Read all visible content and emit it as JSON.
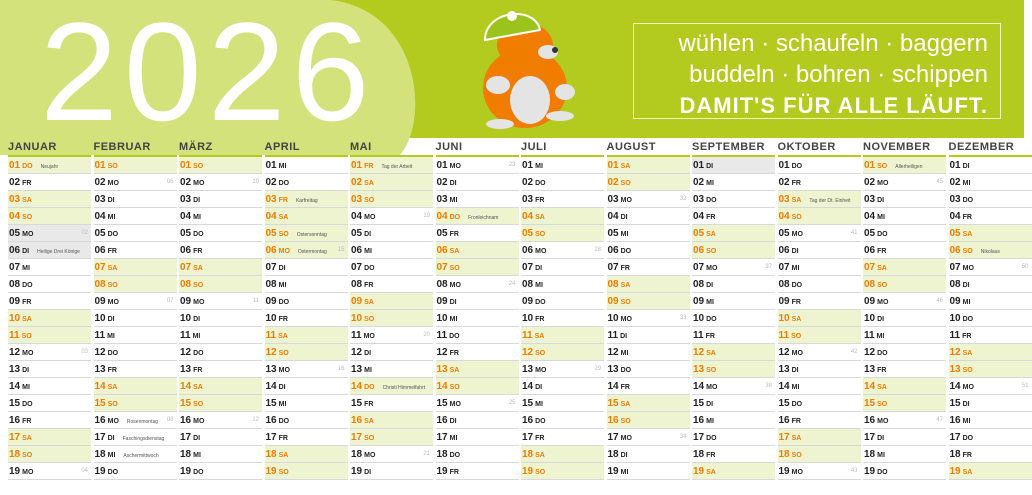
{
  "header": {
    "year": "2026",
    "slogan": [
      "wühlen · schaufeln · baggern",
      "buddeln · bohren · schippen",
      "DAMIT'S FÜR ALLE LÄUFT."
    ]
  },
  "calendar": {
    "months": [
      {
        "name": "JANUAR",
        "days": [
          [
            "01",
            "DO",
            1,
            null,
            "Neujahr"
          ],
          [
            "02",
            "FR",
            0
          ],
          [
            "03",
            "SA",
            1
          ],
          [
            "04",
            "SO",
            1
          ],
          [
            "05",
            "MO",
            2,
            "02"
          ],
          [
            "06",
            "DI",
            2,
            null,
            "Heilige Drei Könige"
          ],
          [
            "07",
            "MI",
            0
          ],
          [
            "08",
            "DO",
            0
          ],
          [
            "09",
            "FR",
            0
          ],
          [
            "10",
            "SA",
            1
          ],
          [
            "11",
            "SO",
            1
          ],
          [
            "12",
            "MO",
            0,
            "03"
          ],
          [
            "13",
            "DI",
            0
          ],
          [
            "14",
            "MI",
            0
          ],
          [
            "15",
            "DO",
            0
          ],
          [
            "16",
            "FR",
            0
          ],
          [
            "17",
            "SA",
            1
          ],
          [
            "18",
            "SO",
            1
          ],
          [
            "19",
            "MO",
            0,
            "04"
          ]
        ]
      },
      {
        "name": "FEBRUAR",
        "days": [
          [
            "01",
            "SO",
            1
          ],
          [
            "02",
            "MO",
            0,
            "06"
          ],
          [
            "03",
            "DI",
            0
          ],
          [
            "04",
            "MI",
            0
          ],
          [
            "05",
            "DO",
            0
          ],
          [
            "06",
            "FR",
            0
          ],
          [
            "07",
            "SA",
            1
          ],
          [
            "08",
            "SO",
            1
          ],
          [
            "09",
            "MO",
            0,
            "07"
          ],
          [
            "10",
            "DI",
            0
          ],
          [
            "11",
            "MI",
            0
          ],
          [
            "12",
            "DO",
            0
          ],
          [
            "13",
            "FR",
            0
          ],
          [
            "14",
            "SA",
            1
          ],
          [
            "15",
            "SO",
            1
          ],
          [
            "16",
            "MO",
            0,
            "08",
            "Rosenmontag"
          ],
          [
            "17",
            "DI",
            0,
            null,
            "Faschingsdienstag"
          ],
          [
            "18",
            "MI",
            0,
            null,
            "Aschermittwoch"
          ],
          [
            "19",
            "DO",
            0
          ]
        ]
      },
      {
        "name": "MÄRZ",
        "days": [
          [
            "01",
            "SO",
            1
          ],
          [
            "02",
            "MO",
            0,
            "10"
          ],
          [
            "03",
            "DI",
            0
          ],
          [
            "04",
            "MI",
            0
          ],
          [
            "05",
            "DO",
            0
          ],
          [
            "06",
            "FR",
            0
          ],
          [
            "07",
            "SA",
            1
          ],
          [
            "08",
            "SO",
            1
          ],
          [
            "09",
            "MO",
            0,
            "11"
          ],
          [
            "10",
            "DI",
            0
          ],
          [
            "11",
            "MI",
            0
          ],
          [
            "12",
            "DO",
            0
          ],
          [
            "13",
            "FR",
            0
          ],
          [
            "14",
            "SA",
            1
          ],
          [
            "15",
            "SO",
            1
          ],
          [
            "16",
            "MO",
            0,
            "12"
          ],
          [
            "17",
            "DI",
            0
          ],
          [
            "18",
            "MI",
            0
          ],
          [
            "19",
            "DO",
            0
          ]
        ]
      },
      {
        "name": "APRIL",
        "days": [
          [
            "01",
            "MI",
            0
          ],
          [
            "02",
            "DO",
            0
          ],
          [
            "03",
            "FR",
            1,
            null,
            "Karfreitag"
          ],
          [
            "04",
            "SA",
            1
          ],
          [
            "05",
            "SO",
            1,
            null,
            "Ostersonntag"
          ],
          [
            "06",
            "MO",
            1,
            "15",
            "Ostermontag"
          ],
          [
            "07",
            "DI",
            0
          ],
          [
            "08",
            "MI",
            0
          ],
          [
            "09",
            "DO",
            0
          ],
          [
            "10",
            "FR",
            0
          ],
          [
            "11",
            "SA",
            1
          ],
          [
            "12",
            "SO",
            1
          ],
          [
            "13",
            "MO",
            0,
            "16"
          ],
          [
            "14",
            "DI",
            0
          ],
          [
            "15",
            "MI",
            0
          ],
          [
            "16",
            "DO",
            0
          ],
          [
            "17",
            "FR",
            0
          ],
          [
            "18",
            "SA",
            1
          ],
          [
            "19",
            "SO",
            1
          ]
        ]
      },
      {
        "name": "MAI",
        "days": [
          [
            "01",
            "FR",
            1,
            null,
            "Tag der Arbeit"
          ],
          [
            "02",
            "SA",
            1
          ],
          [
            "03",
            "SO",
            1
          ],
          [
            "04",
            "MO",
            0,
            "19"
          ],
          [
            "05",
            "DI",
            0
          ],
          [
            "06",
            "MI",
            0
          ],
          [
            "07",
            "DO",
            0
          ],
          [
            "08",
            "FR",
            0
          ],
          [
            "09",
            "SA",
            1
          ],
          [
            "10",
            "SO",
            1
          ],
          [
            "11",
            "MO",
            0,
            "20"
          ],
          [
            "12",
            "DI",
            0
          ],
          [
            "13",
            "MI",
            0
          ],
          [
            "14",
            "DO",
            1,
            null,
            "Christi Himmelfahrt"
          ],
          [
            "15",
            "FR",
            0
          ],
          [
            "16",
            "SA",
            1
          ],
          [
            "17",
            "SO",
            1
          ],
          [
            "18",
            "MO",
            0,
            "21"
          ],
          [
            "19",
            "DI",
            0
          ]
        ]
      },
      {
        "name": "JUNI",
        "days": [
          [
            "01",
            "MO",
            0,
            "23"
          ],
          [
            "02",
            "DI",
            0
          ],
          [
            "03",
            "MI",
            0
          ],
          [
            "04",
            "DO",
            1,
            null,
            "Fronleichnam"
          ],
          [
            "05",
            "FR",
            0
          ],
          [
            "06",
            "SA",
            1
          ],
          [
            "07",
            "SO",
            1
          ],
          [
            "08",
            "MO",
            0,
            "24"
          ],
          [
            "09",
            "DI",
            0
          ],
          [
            "10",
            "MI",
            0
          ],
          [
            "11",
            "DO",
            0
          ],
          [
            "12",
            "FR",
            0
          ],
          [
            "13",
            "SA",
            1
          ],
          [
            "14",
            "SO",
            1
          ],
          [
            "15",
            "MO",
            0,
            "25"
          ],
          [
            "16",
            "DI",
            0
          ],
          [
            "17",
            "MI",
            0
          ],
          [
            "18",
            "DO",
            0
          ],
          [
            "19",
            "FR",
            0
          ]
        ]
      },
      {
        "name": "JULI",
        "days": [
          [
            "01",
            "MI",
            0
          ],
          [
            "02",
            "DO",
            0
          ],
          [
            "03",
            "FR",
            0
          ],
          [
            "04",
            "SA",
            1
          ],
          [
            "05",
            "SO",
            1
          ],
          [
            "06",
            "MO",
            0,
            "28"
          ],
          [
            "07",
            "DI",
            0
          ],
          [
            "08",
            "MI",
            0
          ],
          [
            "09",
            "DO",
            0
          ],
          [
            "10",
            "FR",
            0
          ],
          [
            "11",
            "SA",
            1
          ],
          [
            "12",
            "SO",
            1
          ],
          [
            "13",
            "MO",
            0,
            "29"
          ],
          [
            "14",
            "DI",
            0
          ],
          [
            "15",
            "MI",
            0
          ],
          [
            "16",
            "DO",
            0
          ],
          [
            "17",
            "FR",
            0
          ],
          [
            "18",
            "SA",
            1
          ],
          [
            "19",
            "SO",
            1
          ]
        ]
      },
      {
        "name": "AUGUST",
        "days": [
          [
            "01",
            "SA",
            1
          ],
          [
            "02",
            "SO",
            1
          ],
          [
            "03",
            "MO",
            0,
            "32"
          ],
          [
            "04",
            "DI",
            0
          ],
          [
            "05",
            "MI",
            0
          ],
          [
            "06",
            "DO",
            0
          ],
          [
            "07",
            "FR",
            0
          ],
          [
            "08",
            "SA",
            1
          ],
          [
            "09",
            "SO",
            1
          ],
          [
            "10",
            "MO",
            0,
            "33"
          ],
          [
            "11",
            "DI",
            0
          ],
          [
            "12",
            "MI",
            0
          ],
          [
            "13",
            "DO",
            0
          ],
          [
            "14",
            "FR",
            0
          ],
          [
            "15",
            "SA",
            1
          ],
          [
            "16",
            "SO",
            1
          ],
          [
            "17",
            "MO",
            0,
            "34"
          ],
          [
            "18",
            "DI",
            0
          ],
          [
            "19",
            "MI",
            0
          ]
        ]
      },
      {
        "name": "SEPTEMBER",
        "days": [
          [
            "01",
            "DI",
            2
          ],
          [
            "02",
            "MI",
            0
          ],
          [
            "03",
            "DO",
            0
          ],
          [
            "04",
            "FR",
            0
          ],
          [
            "05",
            "SA",
            1
          ],
          [
            "06",
            "SO",
            1
          ],
          [
            "07",
            "MO",
            0,
            "37"
          ],
          [
            "08",
            "DI",
            0
          ],
          [
            "09",
            "MI",
            0
          ],
          [
            "10",
            "DO",
            0
          ],
          [
            "11",
            "FR",
            0
          ],
          [
            "12",
            "SA",
            1
          ],
          [
            "13",
            "SO",
            1
          ],
          [
            "14",
            "MO",
            0,
            "38"
          ],
          [
            "15",
            "DI",
            0
          ],
          [
            "16",
            "MI",
            0
          ],
          [
            "17",
            "DO",
            0
          ],
          [
            "18",
            "FR",
            0
          ],
          [
            "19",
            "SA",
            1
          ]
        ]
      },
      {
        "name": "OKTOBER",
        "days": [
          [
            "01",
            "DO",
            0
          ],
          [
            "02",
            "FR",
            0
          ],
          [
            "03",
            "SA",
            1,
            null,
            "Tag der Dt. Einheit"
          ],
          [
            "04",
            "SO",
            1
          ],
          [
            "05",
            "MO",
            0,
            "41"
          ],
          [
            "06",
            "DI",
            0
          ],
          [
            "07",
            "MI",
            0
          ],
          [
            "08",
            "DO",
            0
          ],
          [
            "09",
            "FR",
            0
          ],
          [
            "10",
            "SA",
            1
          ],
          [
            "11",
            "SO",
            1
          ],
          [
            "12",
            "MO",
            0,
            "42"
          ],
          [
            "13",
            "DI",
            0
          ],
          [
            "14",
            "MI",
            0
          ],
          [
            "15",
            "DO",
            0
          ],
          [
            "16",
            "FR",
            0
          ],
          [
            "17",
            "SA",
            1
          ],
          [
            "18",
            "SO",
            1
          ],
          [
            "19",
            "MO",
            0,
            "43"
          ]
        ]
      },
      {
        "name": "NOVEMBER",
        "days": [
          [
            "01",
            "SO",
            1,
            null,
            "Allerheiligen"
          ],
          [
            "02",
            "MO",
            0,
            "45"
          ],
          [
            "03",
            "DI",
            0
          ],
          [
            "04",
            "MI",
            0
          ],
          [
            "05",
            "DO",
            0
          ],
          [
            "06",
            "FR",
            0
          ],
          [
            "07",
            "SA",
            1
          ],
          [
            "08",
            "SO",
            1
          ],
          [
            "09",
            "MO",
            0,
            "46"
          ],
          [
            "10",
            "DI",
            0
          ],
          [
            "11",
            "MI",
            0
          ],
          [
            "12",
            "DO",
            0
          ],
          [
            "13",
            "FR",
            0
          ],
          [
            "14",
            "SA",
            1
          ],
          [
            "15",
            "SO",
            1
          ],
          [
            "16",
            "MO",
            0,
            "47"
          ],
          [
            "17",
            "DI",
            0
          ],
          [
            "18",
            "MI",
            0
          ],
          [
            "19",
            "DO",
            0
          ]
        ]
      },
      {
        "name": "DEZEMBER",
        "days": [
          [
            "01",
            "DI",
            0
          ],
          [
            "02",
            "MI",
            0
          ],
          [
            "03",
            "DO",
            0
          ],
          [
            "04",
            "FR",
            0
          ],
          [
            "05",
            "SA",
            1
          ],
          [
            "06",
            "SO",
            1,
            null,
            "Nikolaus"
          ],
          [
            "07",
            "MO",
            0,
            "50"
          ],
          [
            "08",
            "DI",
            0
          ],
          [
            "09",
            "MI",
            0
          ],
          [
            "10",
            "DO",
            0
          ],
          [
            "11",
            "FR",
            0
          ],
          [
            "12",
            "SA",
            1
          ],
          [
            "13",
            "SO",
            1
          ],
          [
            "14",
            "MO",
            0,
            "51"
          ],
          [
            "15",
            "DI",
            0
          ],
          [
            "16",
            "MI",
            0
          ],
          [
            "17",
            "DO",
            0
          ],
          [
            "18",
            "FR",
            0
          ],
          [
            "19",
            "SA",
            1
          ]
        ]
      }
    ]
  }
}
